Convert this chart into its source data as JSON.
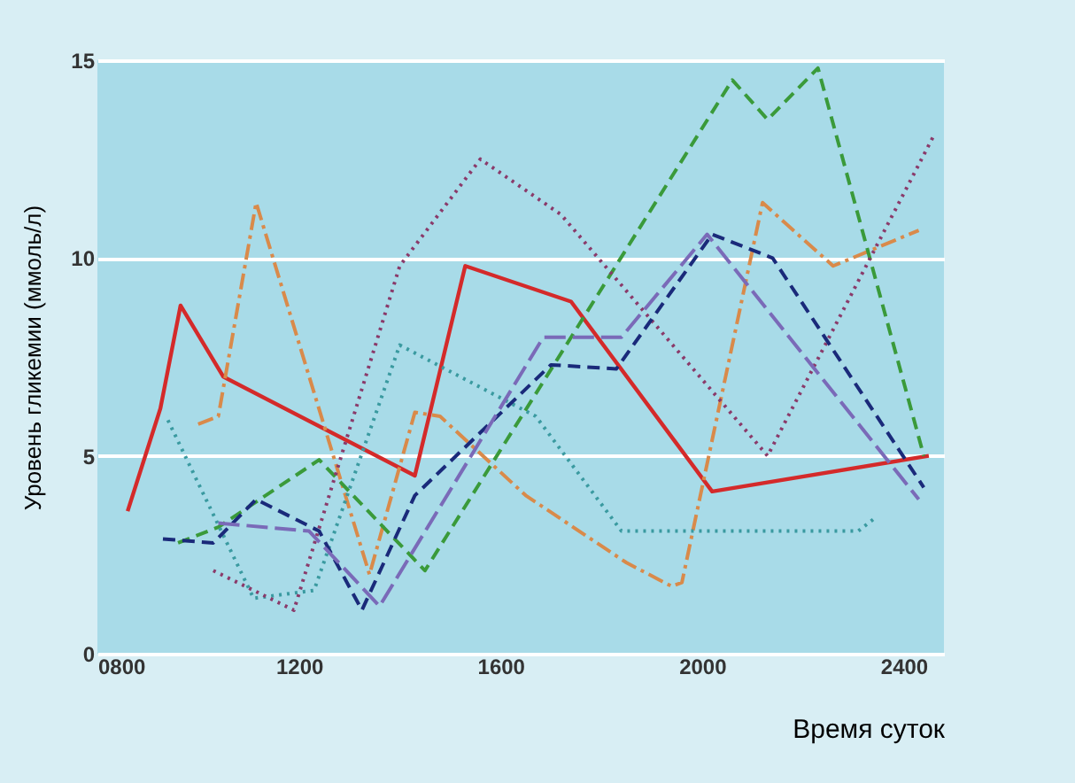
{
  "chart_data": {
    "type": "line",
    "xlabel": "Время суток",
    "ylabel": "Уровень гликемии (ммоль/л)",
    "xlim": [
      800,
      2480
    ],
    "xticks": [
      {
        "value": 800,
        "label": "0800"
      },
      1200,
      1600,
      2000,
      2400
    ],
    "ylim": [
      0,
      15
    ],
    "yticks": [
      0,
      5,
      10,
      15
    ],
    "grid": "y",
    "marker": "none",
    "series": [
      {
        "color": "#d42a2a",
        "line_style": "solid",
        "x": [
          860,
          925,
          965,
          1050,
          1430,
          1530,
          1740,
          2020,
          2450
        ],
        "values": [
          3.6,
          6.2,
          8.8,
          7.0,
          4.5,
          9.8,
          8.9,
          4.1,
          5.0
        ]
      },
      {
        "color": "#d98a4a",
        "line_style": "dashdot",
        "x": [
          1000,
          1040,
          1115,
          1340,
          1430,
          1480,
          1650,
          1850,
          1940,
          1960,
          2120,
          2260,
          2430
        ],
        "values": [
          5.8,
          6.0,
          11.4,
          2.0,
          6.1,
          6.0,
          4.0,
          2.3,
          1.7,
          1.8,
          11.4,
          9.8,
          10.7
        ]
      },
      {
        "color": "#3a9a3a",
        "line_style": "dashed",
        "x": [
          960,
          1040,
          1240,
          1450,
          2060,
          2130,
          2230,
          2440
        ],
        "values": [
          2.8,
          3.2,
          4.9,
          2.1,
          14.5,
          13.5,
          14.8,
          5.0
        ]
      },
      {
        "color": "#3a9aa0",
        "line_style": "dotted",
        "x": [
          940,
          1110,
          1230,
          1400,
          1670,
          1840,
          2310,
          2340
        ],
        "values": [
          5.9,
          1.4,
          1.6,
          7.8,
          6.0,
          3.1,
          3.1,
          3.4
        ]
      },
      {
        "color": "#8a3a6a",
        "line_style": "dotted",
        "x": [
          1030,
          1190,
          1400,
          1560,
          1720,
          2130,
          2460
        ],
        "values": [
          2.1,
          1.1,
          9.8,
          12.5,
          11.1,
          5.0,
          13.1
        ]
      },
      {
        "color": "#1a2a7a",
        "line_style": "dashed",
        "x": [
          930,
          1030,
          1115,
          1240,
          1325,
          1430,
          1700,
          1830,
          2020,
          2140,
          2440
        ],
        "values": [
          2.9,
          2.8,
          3.9,
          3.1,
          1.1,
          4.0,
          7.3,
          7.2,
          10.6,
          10.0,
          4.2
        ]
      },
      {
        "color": "#7a6ab8",
        "line_style": "longdash",
        "x": [
          1040,
          1220,
          1360,
          1685,
          1840,
          2010,
          2430
        ],
        "values": [
          3.3,
          3.1,
          1.2,
          8.0,
          8.0,
          10.6,
          3.9
        ]
      }
    ]
  }
}
